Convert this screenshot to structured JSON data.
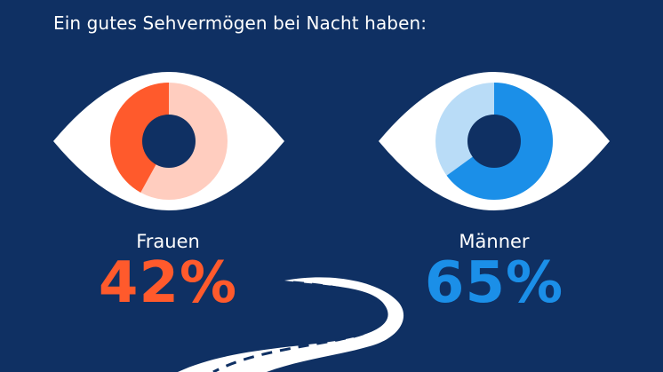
{
  "title": "Ein gutes Sehvermögen bei Nacht haben:",
  "chart_data": {
    "type": "pie",
    "title": "Ein gutes Sehvermögen bei Nacht haben:",
    "series": [
      {
        "name": "Frauen",
        "value": 42,
        "label": "42%",
        "color": "#ff5a2c",
        "rest_color": "#ffcdbf"
      },
      {
        "name": "Männer",
        "value": 65,
        "label": "65%",
        "color": "#1b8fe8",
        "rest_color": "#b9dcf7"
      }
    ]
  }
}
